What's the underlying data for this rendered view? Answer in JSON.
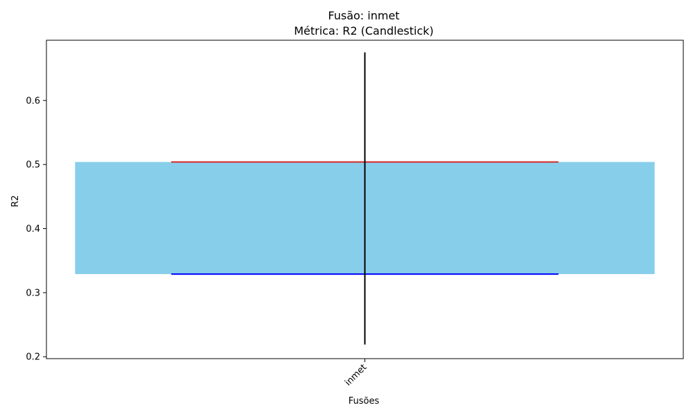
{
  "chart_data": {
    "type": "candlestick",
    "title": "Fusão: inmet",
    "subtitle": "Métrica: R2 (Candlestick)",
    "xlabel": "Fusões",
    "ylabel": "R2",
    "categories": [
      "inmet"
    ],
    "candles": [
      {
        "category": "inmet",
        "low": 0.219,
        "q1": 0.329,
        "q3": 0.504,
        "high": 0.675
      }
    ],
    "ylim": [
      0.197,
      0.694
    ],
    "yticks": [
      0.2,
      0.3,
      0.4,
      0.5,
      0.6
    ],
    "xtick_rotation": 45,
    "grid": false,
    "colors": {
      "box": "#87ceeb",
      "upper": "#d62728",
      "lower": "#0000ff",
      "whisker": "#000000"
    }
  }
}
